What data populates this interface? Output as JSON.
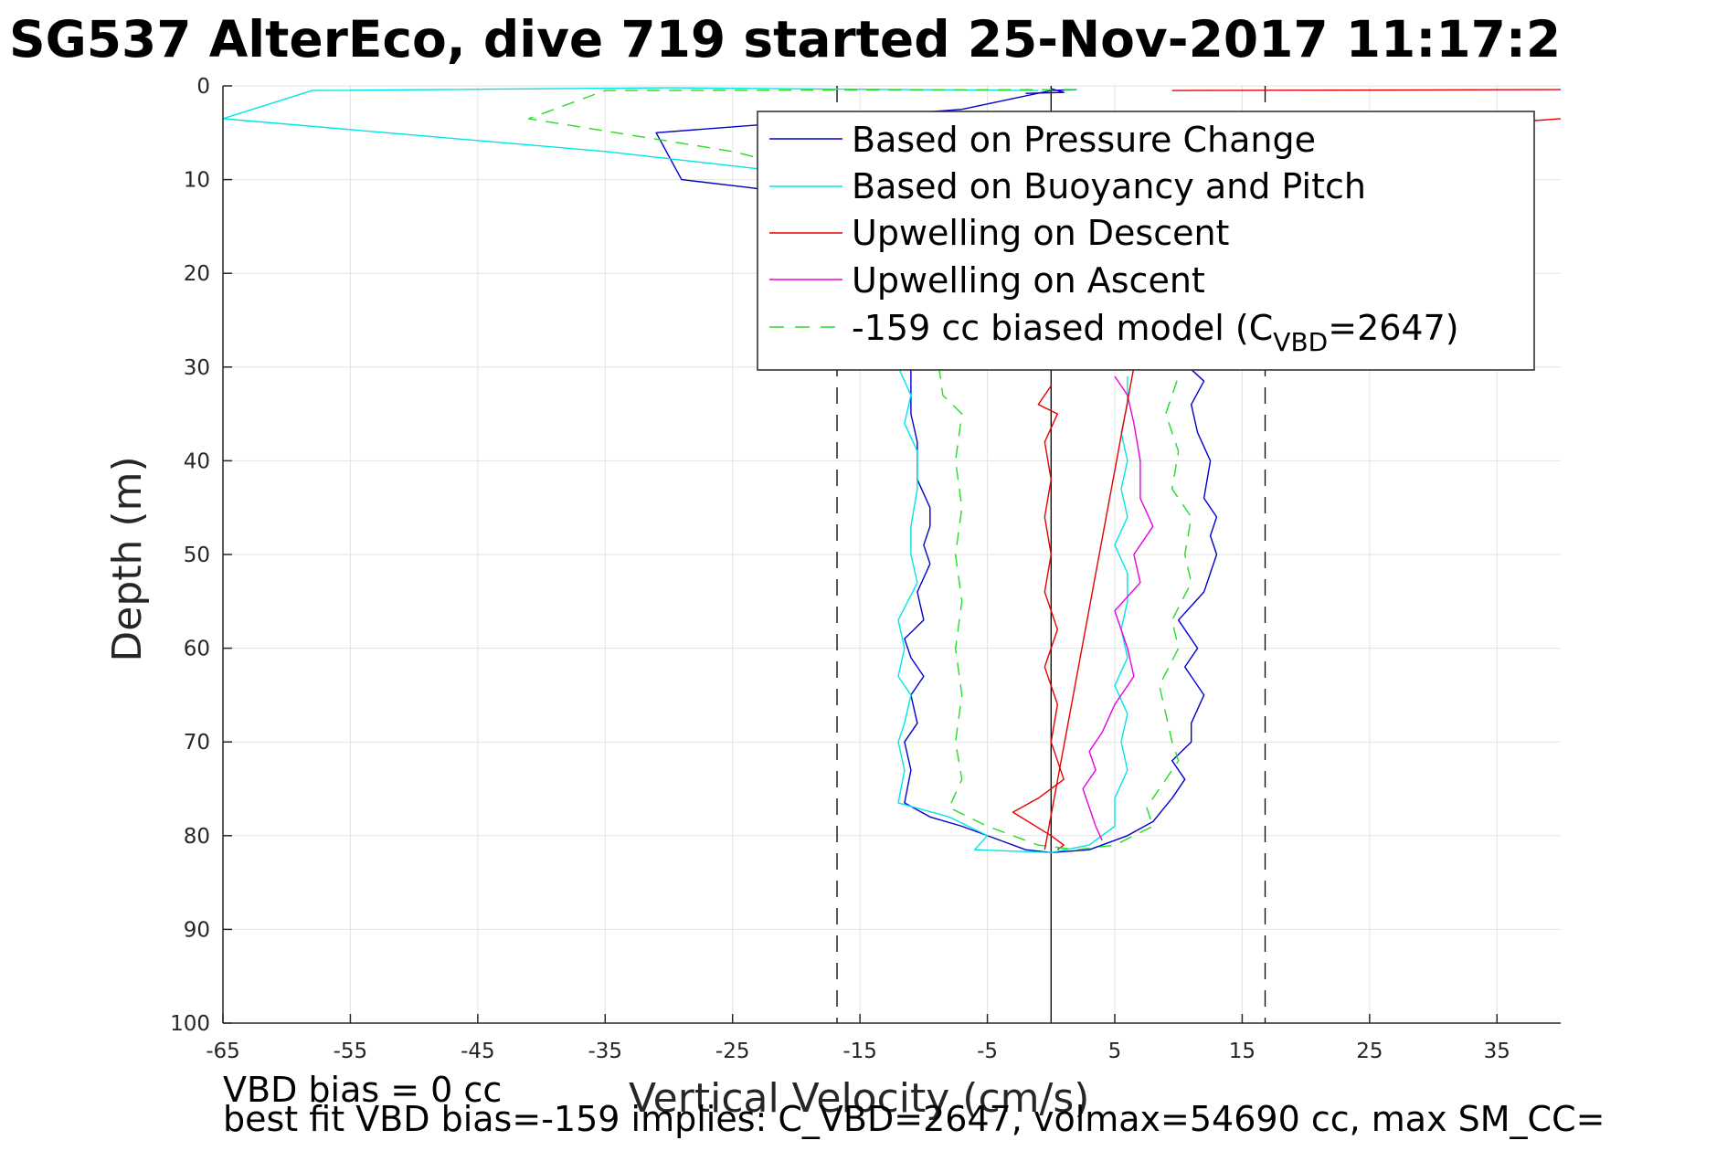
{
  "title": "SG537 AlterEco, dive 719 started 25-Nov-2017 11:17:2",
  "notes": {
    "line1": "VBD bias = 0 cc",
    "line2": "best fit VBD bias=-159 implies: C_VBD=2647, volmax=54690 cc, max SM_CC="
  },
  "legend": {
    "pressure": "Based on Pressure Change",
    "buoyancy": "Based on Buoyancy and Pitch",
    "up_descent": "Upwelling on Descent",
    "up_ascent": "Upwelling on Ascent",
    "model_prefix": "-159 cc biased model (C",
    "model_sub": "VBD",
    "model_suffix": "=2647)"
  },
  "chart_data": {
    "type": "line",
    "title": "SG537 AlterEco, dive 719 started 25-Nov-2017 11:17:2",
    "xlabel": "Vertical Velocity (cm/s)",
    "ylabel": "Depth (m)",
    "xlim": [
      -65,
      40
    ],
    "ylim": [
      0,
      100
    ],
    "y_reversed": true,
    "xticks": [
      -65,
      -55,
      -45,
      -35,
      -25,
      -15,
      -5,
      5,
      15,
      25,
      35
    ],
    "yticks": [
      0,
      10,
      20,
      30,
      40,
      50,
      60,
      70,
      80,
      90,
      100
    ],
    "grid": true,
    "legend_position": "top-right",
    "reference_lines": {
      "zero": 0,
      "dashed": [
        -16.8,
        16.8
      ]
    },
    "colors": {
      "pressure": "#0000cc",
      "buoyancy": "#00e5e5",
      "up_descent": "#e80000",
      "up_ascent": "#e600e6",
      "model": "#22dd22",
      "axis": "#262626",
      "grid": "#e3e3e3"
    },
    "series": [
      {
        "name": "Based on Pressure Change",
        "color": "#0000cc",
        "points": [
          [
            2,
            0.4
          ],
          [
            0,
            0.5
          ],
          [
            -7,
            2.5
          ],
          [
            -31,
            5
          ],
          [
            -29,
            10
          ],
          [
            -24,
            10.8
          ],
          [
            -20,
            11.5
          ],
          [
            -14,
            13
          ],
          [
            -12,
            16
          ],
          [
            -12,
            20
          ],
          [
            -11.5,
            25
          ],
          [
            -11,
            30
          ],
          [
            -11,
            32
          ],
          [
            -11,
            35
          ],
          [
            -10.5,
            38
          ],
          [
            -10.5,
            42
          ],
          [
            -9.5,
            45
          ],
          [
            -9.5,
            47
          ],
          [
            -10,
            49
          ],
          [
            -9.5,
            51
          ],
          [
            -10.5,
            54
          ],
          [
            -10,
            57
          ],
          [
            -11.5,
            59
          ],
          [
            -11,
            61
          ],
          [
            -10,
            63
          ],
          [
            -11,
            65
          ],
          [
            -10.5,
            68
          ],
          [
            -11.5,
            70
          ],
          [
            -11,
            73
          ],
          [
            -11.5,
            76.5
          ],
          [
            -9.5,
            78
          ],
          [
            -7,
            79
          ],
          [
            -4,
            80.5
          ],
          [
            -2,
            81.5
          ],
          [
            0,
            81.8
          ],
          [
            3,
            81.5
          ],
          [
            6,
            80
          ],
          [
            8,
            78.5
          ],
          [
            9.5,
            76
          ],
          [
            10.5,
            74
          ],
          [
            9.5,
            72
          ],
          [
            11,
            70
          ],
          [
            11,
            68
          ],
          [
            12,
            65
          ],
          [
            10.5,
            62
          ],
          [
            11.5,
            60
          ],
          [
            10,
            57
          ],
          [
            12,
            54
          ],
          [
            13,
            50
          ],
          [
            12.5,
            48
          ],
          [
            13,
            46
          ],
          [
            12,
            44
          ],
          [
            12.5,
            40
          ],
          [
            11.5,
            37
          ],
          [
            11,
            34
          ],
          [
            12,
            31.5
          ],
          [
            10,
            29
          ]
        ]
      },
      {
        "name": "Based on Buoyancy and Pitch",
        "color": "#00e5e5",
        "points": [
          [
            -1,
            0.5
          ],
          [
            -30,
            0.2
          ],
          [
            -58,
            0.5
          ],
          [
            -65,
            3.5
          ],
          [
            -35,
            7
          ],
          [
            -22,
            9
          ],
          [
            -16,
            11
          ],
          [
            -13,
            16
          ],
          [
            -12.5,
            20
          ],
          [
            -12,
            25
          ],
          [
            -12,
            30
          ],
          [
            -11,
            33
          ],
          [
            -11.5,
            36
          ],
          [
            -10.5,
            39
          ],
          [
            -10.5,
            43
          ],
          [
            -11,
            47
          ],
          [
            -11,
            50
          ],
          [
            -10.5,
            53
          ],
          [
            -12,
            57
          ],
          [
            -11.5,
            60
          ],
          [
            -12,
            63
          ],
          [
            -11,
            65
          ],
          [
            -11.5,
            68
          ],
          [
            -12,
            70
          ],
          [
            -11.5,
            73
          ],
          [
            -12,
            76.5
          ],
          [
            -8,
            78
          ],
          [
            -5,
            80
          ],
          [
            -6,
            81.5
          ],
          [
            0,
            81.8
          ],
          [
            3,
            81
          ],
          [
            5,
            79
          ],
          [
            5,
            76
          ],
          [
            6,
            73
          ],
          [
            5.5,
            70
          ],
          [
            6,
            67
          ],
          [
            5,
            64
          ],
          [
            6,
            61
          ],
          [
            5.5,
            58
          ],
          [
            6,
            55
          ],
          [
            6,
            52
          ],
          [
            5,
            49
          ],
          [
            6,
            46
          ],
          [
            5.5,
            43
          ],
          [
            6,
            40
          ],
          [
            5.5,
            37
          ],
          [
            6,
            34
          ],
          [
            6,
            31
          ]
        ]
      },
      {
        "name": "Upwelling on Descent",
        "color": "#e80000",
        "points": [
          [
            9.5,
            0.5
          ],
          [
            40,
            0.4
          ],
          "break",
          [
            0,
            32
          ],
          [
            -1,
            34
          ],
          [
            0.5,
            35
          ],
          [
            -0.5,
            38
          ],
          [
            0,
            42
          ],
          [
            -0.5,
            46
          ],
          [
            0,
            50
          ],
          [
            -0.5,
            54
          ],
          [
            0.5,
            58
          ],
          [
            -0.5,
            62
          ],
          [
            0.5,
            66
          ],
          [
            0,
            70
          ],
          [
            1,
            74
          ],
          [
            -1,
            76
          ],
          [
            -3,
            77.5
          ],
          [
            0,
            80
          ],
          [
            1,
            81
          ],
          [
            0.5,
            81.5
          ]
        ]
      },
      {
        "name": "Upwelling on Ascent",
        "color": "#e600e6",
        "points": [
          [
            5,
            31
          ],
          [
            6,
            33
          ],
          [
            6.5,
            36
          ],
          [
            7,
            40
          ],
          [
            7,
            44
          ],
          [
            8,
            47
          ],
          [
            6.5,
            50
          ],
          [
            7,
            53
          ],
          [
            5,
            56
          ],
          [
            6,
            60
          ],
          [
            6.5,
            63
          ],
          [
            5,
            66
          ],
          [
            4,
            69
          ],
          [
            3,
            71
          ],
          [
            3.5,
            73
          ],
          [
            2.5,
            75
          ],
          [
            3,
            77
          ],
          [
            3.5,
            79
          ],
          [
            4,
            80.5
          ]
        ]
      },
      {
        "name": "-159 cc biased model (CVBD=2647)",
        "color": "#22dd22",
        "dashed": true,
        "points": [
          [
            2,
            0.4
          ],
          [
            -35,
            0.5
          ],
          [
            -41,
            3.5
          ],
          [
            -25,
            7
          ],
          [
            -16,
            10
          ],
          [
            -11,
            16
          ],
          [
            -9.5,
            22
          ],
          [
            -9,
            28
          ],
          [
            -8.5,
            33
          ],
          [
            -7,
            35
          ],
          [
            -7.5,
            40
          ],
          [
            -7,
            45
          ],
          [
            -7.5,
            50
          ],
          [
            -7,
            55
          ],
          [
            -7.5,
            60
          ],
          [
            -7,
            65
          ],
          [
            -7.5,
            70
          ],
          [
            -7,
            74
          ],
          [
            -8,
            77
          ],
          [
            -5,
            79
          ],
          [
            -1,
            81
          ],
          [
            2,
            81.5
          ],
          [
            5,
            81
          ],
          [
            8,
            79
          ],
          [
            7.5,
            77
          ],
          [
            8.5,
            75
          ],
          [
            10,
            72
          ],
          [
            9.5,
            70
          ],
          [
            9,
            67
          ],
          [
            8.5,
            64
          ],
          [
            10,
            60
          ],
          [
            9.5,
            57
          ],
          [
            11,
            53
          ],
          [
            10.5,
            50
          ],
          [
            11,
            46
          ],
          [
            9.5,
            43
          ],
          [
            10,
            39
          ],
          [
            9,
            35
          ],
          [
            10,
            31
          ]
        ]
      }
    ],
    "extra_lines": [
      {
        "color": "#e80000",
        "points": [
          [
            -0.5,
            81.5
          ],
          [
            6.5,
            30
          ]
        ]
      },
      {
        "color": "#e80000",
        "points": [
          [
            37,
            3.8
          ],
          [
            40,
            3.5
          ]
        ]
      },
      {
        "color": "#0000cc",
        "points": [
          [
            -2,
            0.8
          ],
          [
            1,
            0.7
          ],
          [
            0,
            0.3
          ]
        ]
      }
    ]
  }
}
